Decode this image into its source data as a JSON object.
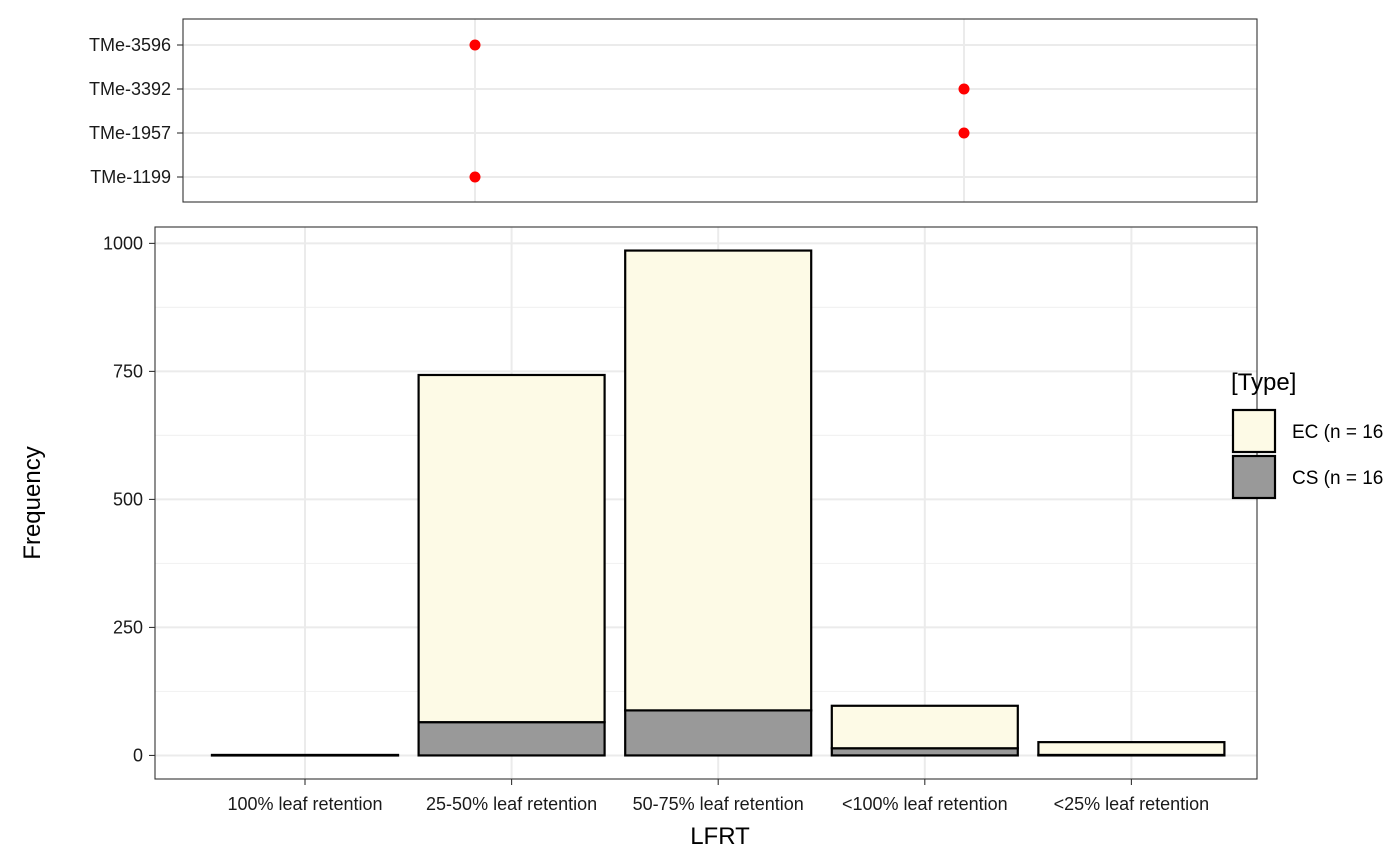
{
  "chart_data": [
    {
      "type": "scatter",
      "categories": [
        "TMe-3596",
        "TMe-3392",
        "TMe-1957",
        "TMe-1199"
      ],
      "x_categories": [
        "100% leaf retention",
        "25-50% leaf retention",
        "50-75% leaf retention",
        "<100% leaf retention",
        "<25% leaf retention"
      ],
      "points": [
        {
          "genotype": "TMe-3596",
          "category": "25-50% leaf retention"
        },
        {
          "genotype": "TMe-3392",
          "category": "<100% leaf retention"
        },
        {
          "genotype": "TMe-1957",
          "category": "<100% leaf retention"
        },
        {
          "genotype": "TMe-1199",
          "category": "25-50% leaf retention"
        }
      ],
      "point_color": "#ff0000",
      "grid": true
    },
    {
      "type": "bar",
      "stacked": true,
      "categories": [
        "100% leaf retention",
        "25-50% leaf retention",
        "50-75% leaf retention",
        "<100% leaf retention",
        "<25% leaf retention"
      ],
      "series": [
        {
          "name": "CS (n = 16",
          "color": "#999999",
          "values": [
            0,
            65,
            88,
            14,
            1
          ]
        },
        {
          "name": "EC (n = 16",
          "color": "#fdfae6",
          "values": [
            1,
            678,
            898,
            83,
            25
          ]
        }
      ],
      "xlabel": "LFRT",
      "ylabel": "Frequency",
      "yticks": [
        0,
        250,
        500,
        750,
        1000
      ],
      "ylim": [
        -46,
        1032
      ],
      "grid": true,
      "legend_title": "[Type]",
      "legend_position": "right"
    }
  ]
}
